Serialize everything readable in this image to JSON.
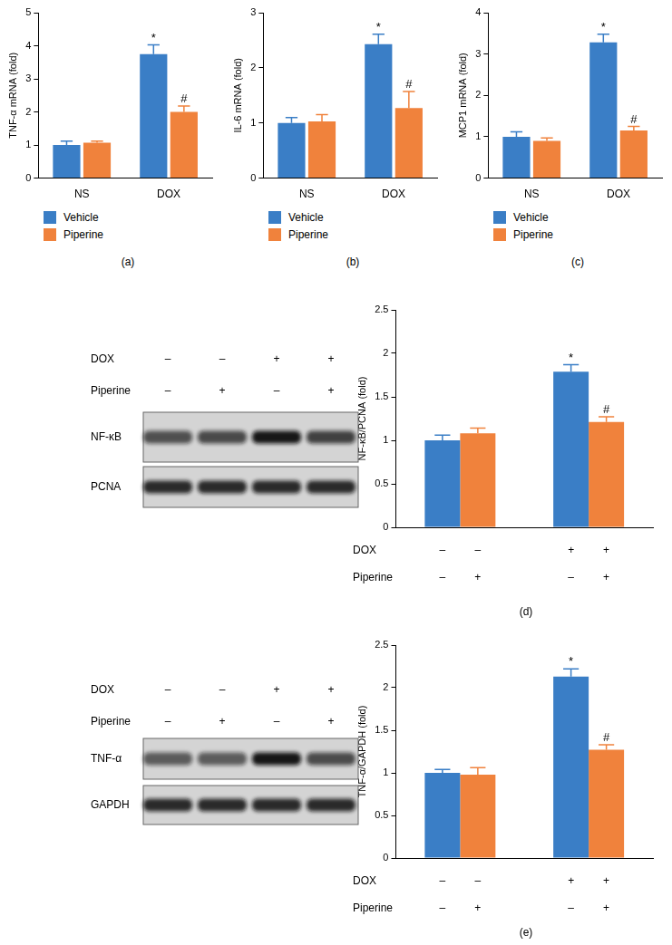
{
  "chart_data": [
    {
      "type": "bar",
      "caption": "(a)",
      "y_label": "TNF-α mRNA (fold)",
      "categories": [
        "NS",
        "DOX"
      ],
      "series": [
        {
          "name": "Vehicle",
          "color": "#3a7ec6",
          "values": [
            1.0,
            3.75
          ],
          "errors": [
            0.12,
            0.28
          ],
          "annotations": [
            null,
            "*"
          ]
        },
        {
          "name": "Piperine",
          "color": "#f0823c",
          "values": [
            1.07,
            2.0
          ],
          "errors": [
            0.05,
            0.18
          ],
          "annotations": [
            null,
            "#"
          ]
        }
      ],
      "ylim": [
        0,
        5
      ],
      "yticks": [
        0,
        1,
        2,
        3,
        4,
        5
      ],
      "grid": false,
      "legend": "bottom"
    },
    {
      "type": "bar",
      "caption": "(b)",
      "y_label": "IL-6 mRNA (fold)",
      "categories": [
        "NS",
        "DOX"
      ],
      "series": [
        {
          "name": "Vehicle",
          "color": "#3a7ec6",
          "values": [
            1.0,
            2.43
          ],
          "errors": [
            0.1,
            0.18
          ],
          "annotations": [
            null,
            "*"
          ]
        },
        {
          "name": "Piperine",
          "color": "#f0823c",
          "values": [
            1.03,
            1.27
          ],
          "errors": [
            0.12,
            0.3
          ],
          "annotations": [
            null,
            "#"
          ]
        }
      ],
      "ylim": [
        0,
        3
      ],
      "yticks": [
        0,
        1,
        2,
        3
      ],
      "grid": false,
      "legend": "bottom"
    },
    {
      "type": "bar",
      "caption": "(c)",
      "y_label": "MCP1 mRNA (fold)",
      "categories": [
        "NS",
        "DOX"
      ],
      "series": [
        {
          "name": "Vehicle",
          "color": "#3a7ec6",
          "values": [
            1.0,
            3.28
          ],
          "errors": [
            0.12,
            0.2
          ],
          "annotations": [
            null,
            "*"
          ]
        },
        {
          "name": "Piperine",
          "color": "#f0823c",
          "values": [
            0.9,
            1.15
          ],
          "errors": [
            0.07,
            0.1
          ],
          "annotations": [
            null,
            "#"
          ]
        }
      ],
      "ylim": [
        0,
        4
      ],
      "yticks": [
        0,
        1,
        2,
        3,
        4
      ],
      "grid": false,
      "legend": "bottom"
    },
    {
      "type": "bar",
      "caption": "(d)",
      "y_label": "NF-κB/PCNA (fold)",
      "categories": [
        null,
        null
      ],
      "series": [
        {
          "color": "#3a7ec6",
          "values": [
            1.0,
            1.79
          ],
          "errors": [
            0.06,
            0.08
          ],
          "annotations": [
            null,
            "*"
          ]
        },
        {
          "color": "#f0823c",
          "values": [
            1.08,
            1.21
          ],
          "errors": [
            0.06,
            0.06
          ],
          "annotations": [
            null,
            "#"
          ]
        }
      ],
      "ylim": [
        0,
        2.5
      ],
      "yticks": [
        0,
        0.5,
        1,
        1.5,
        2,
        2.5
      ],
      "grid": false,
      "tick_labels": "y",
      "conditions": [
        {
          "name": "DOX",
          "signs": [
            "–",
            "–",
            "+",
            "+"
          ]
        },
        {
          "name": "Piperine",
          "signs": [
            "–",
            "+",
            "–",
            "+"
          ]
        }
      ]
    },
    {
      "type": "bar",
      "caption": "(e)",
      "y_label": "TNF-α/GAPDH (fold)",
      "categories": [
        null,
        null
      ],
      "series": [
        {
          "color": "#3a7ec6",
          "values": [
            1.0,
            2.13
          ],
          "errors": [
            0.04,
            0.09
          ],
          "annotations": [
            null,
            "*"
          ]
        },
        {
          "color": "#f0823c",
          "values": [
            0.98,
            1.27
          ],
          "errors": [
            0.08,
            0.06
          ],
          "annotations": [
            null,
            "#"
          ]
        }
      ],
      "ylim": [
        0,
        2.5
      ],
      "yticks": [
        0,
        0.5,
        1,
        1.5,
        2,
        2.5
      ],
      "grid": false,
      "tick_labels": "y",
      "conditions": [
        {
          "name": "DOX",
          "signs": [
            "–",
            "–",
            "+",
            "+"
          ]
        },
        {
          "name": "Piperine",
          "signs": [
            "–",
            "+",
            "–",
            "+"
          ]
        }
      ]
    }
  ],
  "blots": [
    {
      "conditions": [
        {
          "name": "DOX",
          "signs": [
            "–",
            "–",
            "+",
            "+"
          ]
        },
        {
          "name": "Piperine",
          "signs": [
            "–",
            "+",
            "–",
            "+"
          ]
        }
      ],
      "bands": [
        "NF-κB",
        "PCNA"
      ]
    },
    {
      "conditions": [
        {
          "name": "DOX",
          "signs": [
            "–",
            "–",
            "+",
            "+"
          ]
        },
        {
          "name": "Piperine",
          "signs": [
            "–",
            "+",
            "–",
            "+"
          ]
        }
      ],
      "bands": [
        "TNF-α",
        "GAPDH"
      ]
    }
  ]
}
